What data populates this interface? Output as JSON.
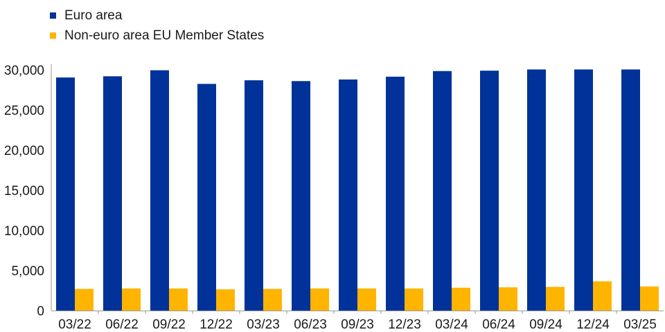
{
  "chart_data": {
    "type": "bar",
    "categories": [
      "03/22",
      "06/22",
      "09/22",
      "12/22",
      "03/23",
      "06/23",
      "09/23",
      "12/23",
      "03/24",
      "06/24",
      "09/24",
      "12/24",
      "03/25"
    ],
    "series": [
      {
        "name": "Euro area",
        "color": "#003299",
        "values": [
          29050,
          29200,
          29950,
          28250,
          28700,
          28600,
          28800,
          29150,
          29850,
          29900,
          30050,
          30050,
          30050
        ]
      },
      {
        "name": "Non-euro area EU Member States",
        "color": "#FFB400",
        "values": [
          2700,
          2750,
          2750,
          2650,
          2700,
          2750,
          2750,
          2750,
          2850,
          2900,
          2950,
          3650,
          3000
        ]
      }
    ],
    "y_ticks": [
      "0",
      "5,000",
      "10,000",
      "15,000",
      "20,000",
      "25,000",
      "30,000"
    ],
    "ylim": [
      0,
      30000
    ],
    "grid": false,
    "legend_position": "top-left"
  }
}
